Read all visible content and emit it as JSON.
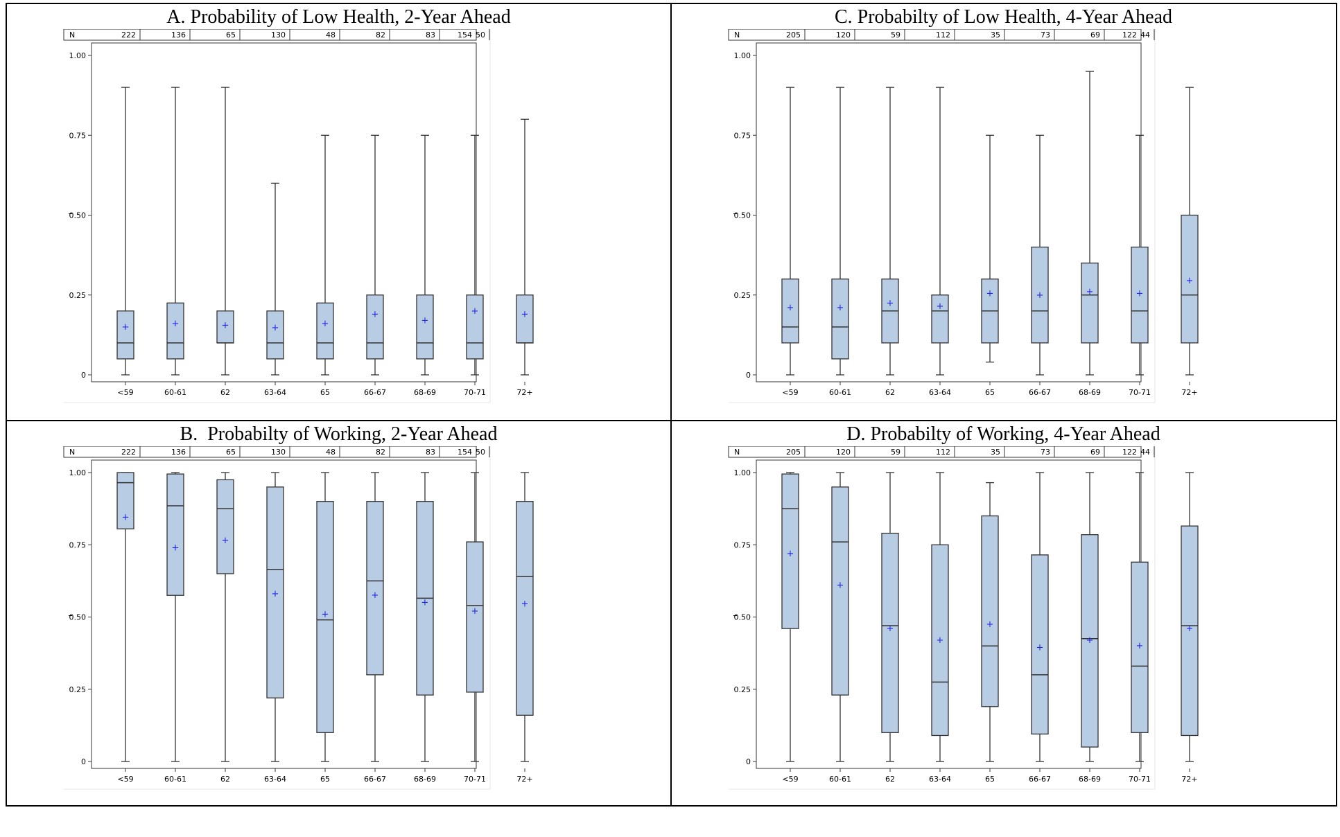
{
  "page_title_fragment": "",
  "categories": [
    "<59",
    "60-61",
    "62",
    "63-64",
    "65",
    "66-67",
    "68-69",
    "70-71",
    "72+"
  ],
  "colors": {
    "box_fill": "#b8cce4",
    "box_stroke": "#333333",
    "mean_marker": "#2222ee",
    "axis": "#333333"
  },
  "chart_data": [
    {
      "panel": "A",
      "type": "box",
      "title": "A. Probability of Low Health, 2-Year Ahead",
      "n_label": "N",
      "n": [
        222,
        136,
        65,
        130,
        48,
        82,
        83,
        50,
        154
      ],
      "yticks": [
        "0",
        "0.25",
        "0.50",
        "0.75",
        "1.00"
      ],
      "ylim": [
        0,
        1
      ],
      "boxes": [
        {
          "min": 0,
          "q1": 0.05,
          "median": 0.1,
          "q3": 0.2,
          "max": 0.9,
          "mean": 0.15
        },
        {
          "min": 0,
          "q1": 0.05,
          "median": 0.1,
          "q3": 0.225,
          "max": 0.9,
          "mean": 0.16
        },
        {
          "min": 0,
          "q1": 0.1,
          "median": 0.1,
          "q3": 0.2,
          "max": 0.9,
          "mean": 0.155
        },
        {
          "min": 0,
          "q1": 0.05,
          "median": 0.1,
          "q3": 0.2,
          "max": 0.6,
          "mean": 0.148
        },
        {
          "min": 0,
          "q1": 0.05,
          "median": 0.1,
          "q3": 0.225,
          "max": 0.75,
          "mean": 0.16
        },
        {
          "min": 0,
          "q1": 0.05,
          "median": 0.1,
          "q3": 0.25,
          "max": 0.75,
          "mean": 0.19
        },
        {
          "min": 0,
          "q1": 0.05,
          "median": 0.1,
          "q3": 0.25,
          "max": 0.75,
          "mean": 0.17
        },
        {
          "min": 0,
          "q1": 0.05,
          "median": 0.1,
          "q3": 0.25,
          "max": 0.75,
          "mean": 0.2
        },
        {
          "min": 0,
          "q1": 0.1,
          "median": 0.1,
          "q3": 0.25,
          "max": 0.8,
          "mean": 0.19
        }
      ]
    },
    {
      "panel": "C",
      "type": "box",
      "title": "C. Probabilty of Low Health, 4-Year Ahead",
      "n_label": "N",
      "n": [
        205,
        120,
        59,
        112,
        35,
        73,
        69,
        44,
        122
      ],
      "yticks": [
        "0",
        "0.25",
        "0.50",
        "0.75",
        "1.00"
      ],
      "ylim": [
        0,
        1
      ],
      "boxes": [
        {
          "min": 0,
          "q1": 0.1,
          "median": 0.15,
          "q3": 0.3,
          "max": 0.9,
          "mean": 0.21
        },
        {
          "min": 0,
          "q1": 0.05,
          "median": 0.15,
          "q3": 0.3,
          "max": 0.9,
          "mean": 0.21
        },
        {
          "min": 0,
          "q1": 0.1,
          "median": 0.2,
          "q3": 0.3,
          "max": 0.9,
          "mean": 0.225
        },
        {
          "min": 0,
          "q1": 0.1,
          "median": 0.2,
          "q3": 0.25,
          "max": 0.9,
          "mean": 0.215
        },
        {
          "min": 0.04,
          "q1": 0.1,
          "median": 0.2,
          "q3": 0.3,
          "max": 0.75,
          "mean": 0.255
        },
        {
          "min": 0,
          "q1": 0.1,
          "median": 0.2,
          "q3": 0.4,
          "max": 0.75,
          "mean": 0.25
        },
        {
          "min": 0,
          "q1": 0.1,
          "median": 0.25,
          "q3": 0.35,
          "max": 0.95,
          "mean": 0.26
        },
        {
          "min": 0,
          "q1": 0.1,
          "median": 0.2,
          "q3": 0.4,
          "max": 0.75,
          "mean": 0.255
        },
        {
          "min": 0,
          "q1": 0.1,
          "median": 0.25,
          "q3": 0.5,
          "max": 0.9,
          "mean": 0.295
        }
      ]
    },
    {
      "panel": "B",
      "type": "box",
      "title": "B.  Probabilty of Working, 2-Year Ahead",
      "n_label": "N",
      "n": [
        222,
        136,
        65,
        130,
        48,
        82,
        83,
        50,
        154
      ],
      "yticks": [
        "0",
        "0.25",
        "0.50",
        "0.75",
        "1.00"
      ],
      "ylim": [
        0,
        1
      ],
      "boxes": [
        {
          "min": 0,
          "q1": 0.805,
          "median": 0.965,
          "q3": 1.0,
          "max": 1.0,
          "mean": 0.845
        },
        {
          "min": 0,
          "q1": 0.575,
          "median": 0.885,
          "q3": 0.995,
          "max": 1.0,
          "mean": 0.74
        },
        {
          "min": 0,
          "q1": 0.65,
          "median": 0.875,
          "q3": 0.975,
          "max": 1.0,
          "mean": 0.765
        },
        {
          "min": 0,
          "q1": 0.22,
          "median": 0.665,
          "q3": 0.95,
          "max": 1.0,
          "mean": 0.58
        },
        {
          "min": 0,
          "q1": 0.1,
          "median": 0.49,
          "q3": 0.9,
          "max": 1.0,
          "mean": 0.51
        },
        {
          "min": 0,
          "q1": 0.3,
          "median": 0.625,
          "q3": 0.9,
          "max": 1.0,
          "mean": 0.575
        },
        {
          "min": 0,
          "q1": 0.23,
          "median": 0.565,
          "q3": 0.9,
          "max": 1.0,
          "mean": 0.55
        },
        {
          "min": 0,
          "q1": 0.24,
          "median": 0.54,
          "q3": 0.76,
          "max": 1.0,
          "mean": 0.52
        },
        {
          "min": 0,
          "q1": 0.16,
          "median": 0.64,
          "q3": 0.9,
          "max": 1.0,
          "mean": 0.545
        }
      ]
    },
    {
      "panel": "D",
      "type": "box",
      "title": "D. Probabilty of Working, 4-Year Ahead",
      "n_label": "N",
      "n": [
        205,
        120,
        59,
        112,
        35,
        73,
        69,
        44,
        122
      ],
      "yticks": [
        "0",
        "0.25",
        "0.50",
        "0.75",
        "1.00"
      ],
      "ylim": [
        0,
        1
      ],
      "boxes": [
        {
          "min": 0,
          "q1": 0.46,
          "median": 0.875,
          "q3": 0.995,
          "max": 1.0,
          "mean": 0.72
        },
        {
          "min": 0,
          "q1": 0.23,
          "median": 0.76,
          "q3": 0.95,
          "max": 1.0,
          "mean": 0.61
        },
        {
          "min": 0,
          "q1": 0.1,
          "median": 0.47,
          "q3": 0.79,
          "max": 1.0,
          "mean": 0.46
        },
        {
          "min": 0,
          "q1": 0.09,
          "median": 0.275,
          "q3": 0.75,
          "max": 1.0,
          "mean": 0.42
        },
        {
          "min": 0,
          "q1": 0.19,
          "median": 0.4,
          "q3": 0.85,
          "max": 0.965,
          "mean": 0.475
        },
        {
          "min": 0,
          "q1": 0.095,
          "median": 0.3,
          "q3": 0.715,
          "max": 1.0,
          "mean": 0.395
        },
        {
          "min": 0,
          "q1": 0.05,
          "median": 0.425,
          "q3": 0.785,
          "max": 1.0,
          "mean": 0.42
        },
        {
          "min": 0,
          "q1": 0.1,
          "median": 0.33,
          "q3": 0.69,
          "max": 1.0,
          "mean": 0.4
        },
        {
          "min": 0,
          "q1": 0.09,
          "median": 0.47,
          "q3": 0.815,
          "max": 1.0,
          "mean": 0.46
        }
      ]
    }
  ]
}
